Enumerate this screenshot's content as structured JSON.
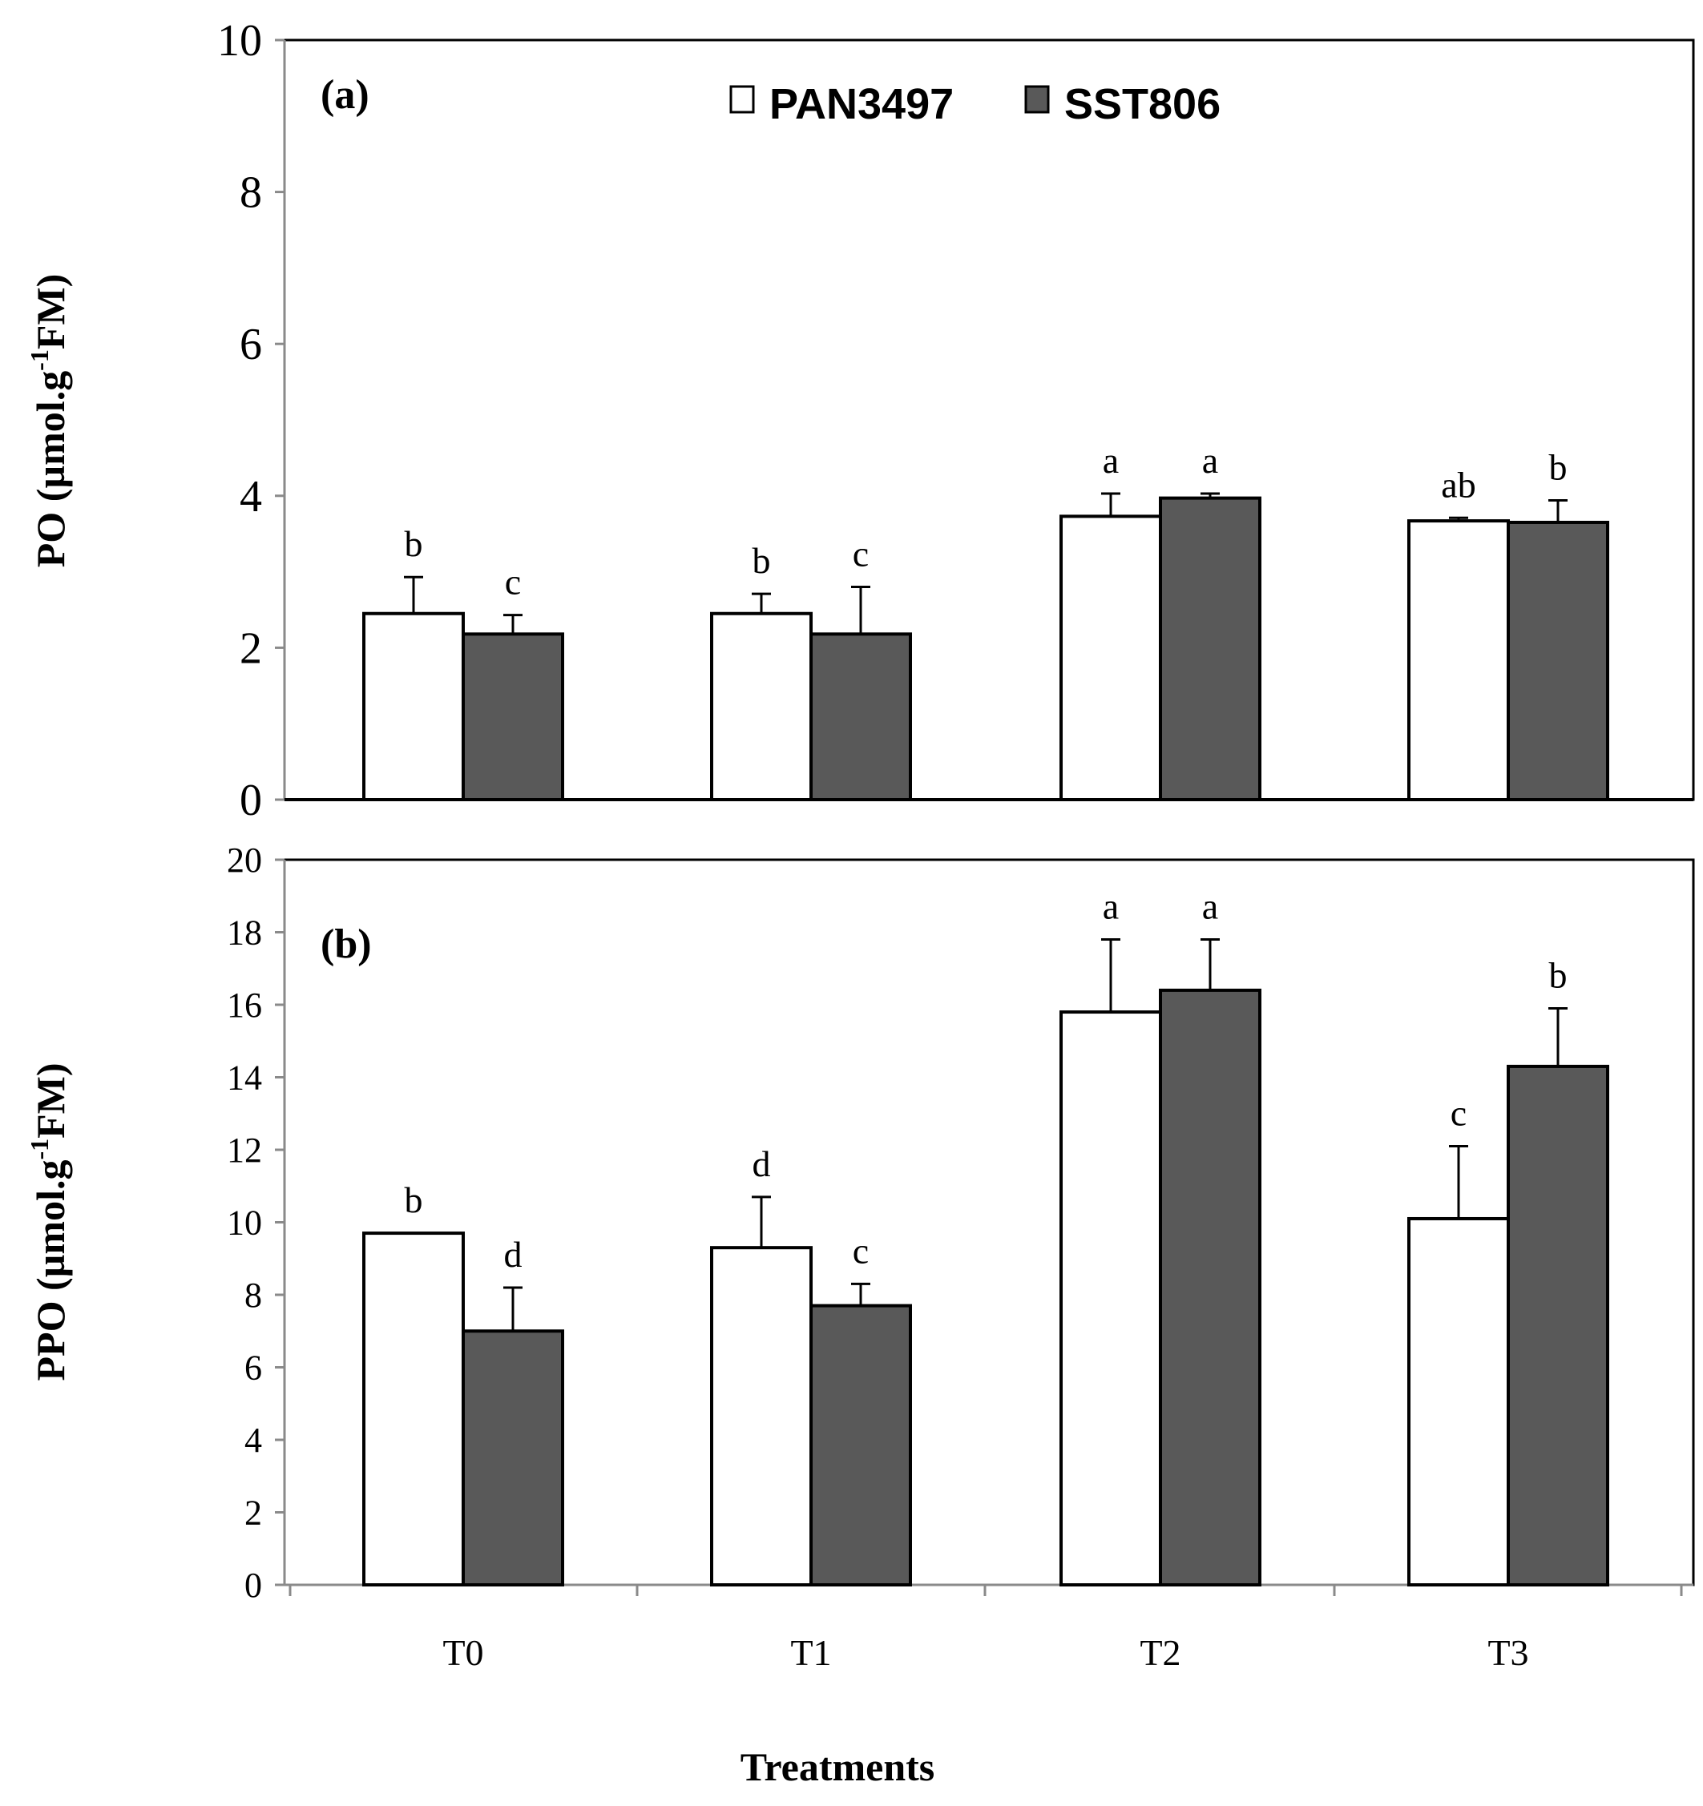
{
  "chart_data": [
    {
      "panel_label": "(a)",
      "type": "bar",
      "categories": [
        "T0",
        "T1",
        "T2",
        "T3"
      ],
      "ylabel": "PO (µmol.g⁻¹FM)",
      "ylabel_parts": {
        "before": "PO (µmol.g",
        "sup": "-1",
        "after": "FM)"
      },
      "ylim": [
        0,
        10
      ],
      "yticks": [
        "0",
        "2",
        "4",
        "6",
        "8",
        "10"
      ],
      "series": [
        {
          "name": "PAN3497",
          "color": "#ffffff",
          "values": [
            2.45,
            2.45,
            3.73,
            3.67
          ],
          "errors": [
            0.48,
            0.26,
            0.3,
            0.04
          ],
          "letters": [
            "b",
            "b",
            "a",
            "ab"
          ]
        },
        {
          "name": "SST806",
          "color": "#595959",
          "values": [
            2.18,
            2.18,
            3.97,
            3.65
          ],
          "errors": [
            0.25,
            0.62,
            0.06,
            0.29
          ],
          "letters": [
            "c",
            "c",
            "a",
            "b"
          ]
        }
      ]
    },
    {
      "panel_label": "(b)",
      "type": "bar",
      "categories": [
        "T0",
        "T1",
        "T2",
        "T3"
      ],
      "ylabel": "PPO (µmol.g⁻¹FM)",
      "ylabel_parts": {
        "before": "PPO (µmol.g",
        "sup": "-1",
        "after": "FM)"
      },
      "ylim": [
        0,
        20
      ],
      "yticks": [
        "0",
        "2",
        "4",
        "6",
        "8",
        "10",
        "12",
        "14",
        "16",
        "18",
        "20"
      ],
      "xlabel": "Treatments",
      "series": [
        {
          "name": "PAN3497",
          "color": "#ffffff",
          "values": [
            9.7,
            9.3,
            15.8,
            10.1
          ],
          "errors": [
            0.0,
            1.4,
            2.0,
            2.0
          ],
          "letters": [
            "b",
            "d",
            "a",
            "c"
          ]
        },
        {
          "name": "SST806",
          "color": "#595959",
          "values": [
            7.0,
            7.7,
            16.4,
            14.3
          ],
          "errors": [
            1.2,
            0.6,
            1.4,
            1.6
          ],
          "letters": [
            "d",
            "c",
            "a",
            "b"
          ]
        }
      ]
    }
  ],
  "legend": [
    {
      "name": "PAN3497",
      "color": "#ffffff"
    },
    {
      "name": "SST806",
      "color": "#595959"
    }
  ]
}
